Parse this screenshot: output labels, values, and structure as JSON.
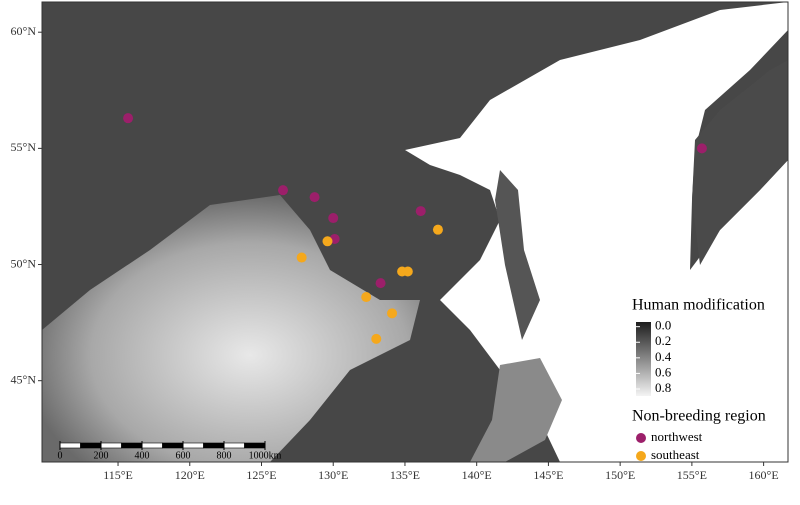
{
  "chart_data": {
    "type": "scatter",
    "xlim": [
      109.7,
      161.7
    ],
    "ylim": [
      41.5,
      61.3
    ],
    "xticks": [
      {
        "value": 115,
        "label": "115°E"
      },
      {
        "value": 120,
        "label": "120°E"
      },
      {
        "value": 125,
        "label": "125°E"
      },
      {
        "value": 130,
        "label": "130°E"
      },
      {
        "value": 135,
        "label": "135°E"
      },
      {
        "value": 140,
        "label": "140°E"
      },
      {
        "value": 145,
        "label": "145°E"
      },
      {
        "value": 150,
        "label": "150°E"
      },
      {
        "value": 155,
        "label": "155°E"
      },
      {
        "value": 160,
        "label": "160°E"
      }
    ],
    "yticks": [
      {
        "value": 45,
        "label": "45°N"
      },
      {
        "value": 50,
        "label": "50°N"
      },
      {
        "value": 55,
        "label": "55°N"
      },
      {
        "value": 60,
        "label": "60°N"
      }
    ],
    "legend_title": "Non-breeding region",
    "series": [
      {
        "name": "northwest",
        "color": "#9c1f6a",
        "x": [
          115.7,
          126.5,
          128.7,
          130.0,
          136.1,
          130.1,
          133.3,
          155.7
        ],
        "values": [
          56.3,
          53.2,
          52.9,
          52.0,
          52.3,
          51.1,
          49.2,
          55.0
        ]
      },
      {
        "name": "southeast",
        "color": "#f5a81c",
        "x": [
          129.6,
          127.8,
          137.3,
          134.8,
          135.2,
          132.3,
          134.1,
          133.0
        ],
        "values": [
          51.0,
          50.3,
          51.5,
          49.7,
          49.7,
          48.6,
          47.9,
          46.8
        ]
      }
    ],
    "colorbar": {
      "title": "Human modification",
      "lim": [
        -0.06,
        0.89
      ],
      "ticks": [
        {
          "value": 0,
          "label": "0.0"
        },
        0.2,
        0.4,
        0.6,
        0.8
      ]
    },
    "scalebar": {
      "ticks": [
        0,
        200,
        400,
        600,
        800,
        {
          "value": 1000,
          "label": "1000km"
        }
      ]
    }
  }
}
